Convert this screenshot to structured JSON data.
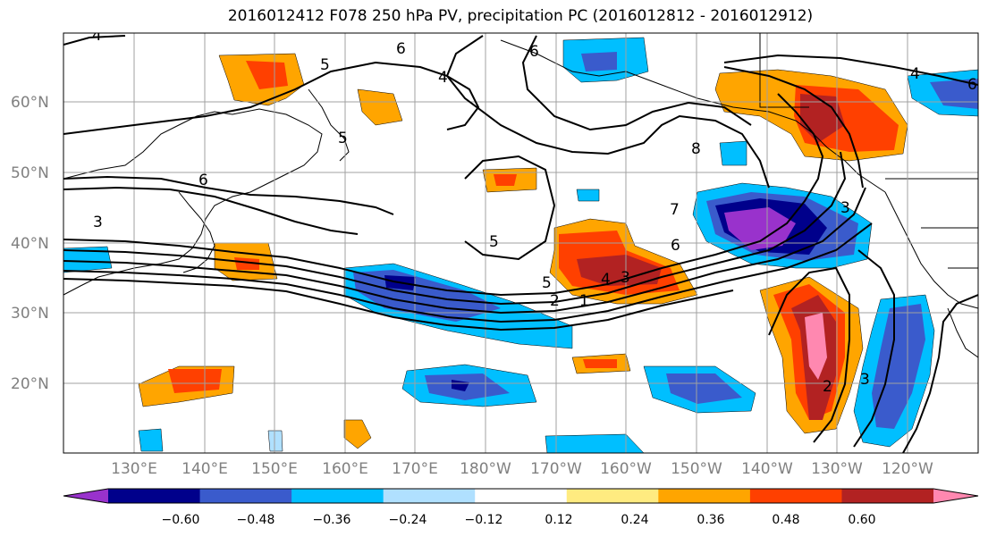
{
  "title": "2016012412 F078 250 hPa PV, precipitation PC (2016012812 - 2016012912)",
  "map": {
    "lat_labels": [
      "60°N",
      "50°N",
      "40°N",
      "30°N",
      "20°N"
    ],
    "lon_labels": [
      "130°E",
      "140°E",
      "150°E",
      "160°E",
      "170°E",
      "180°W",
      "170°W",
      "160°W",
      "150°W",
      "140°W",
      "130°W",
      "120°W"
    ]
  },
  "colorbar": {
    "colors": [
      "#9932CC",
      "#00008B",
      "#3A5BCC",
      "#00BFFF",
      "#B0E0FF",
      "#FFFFFF",
      "#FFEB80",
      "#FFA500",
      "#FF4000",
      "#B22222",
      "#FF88B0"
    ],
    "tick_labels": [
      "−0.60",
      "−0.48",
      "−0.36",
      "−0.24",
      "−0.12",
      "0.12",
      "0.24",
      "0.36",
      "0.48",
      "0.60"
    ]
  },
  "contour_labels": [
    "4",
    "5",
    "6",
    "6",
    "4",
    "5",
    "6",
    "3",
    "5",
    "8",
    "7",
    "6",
    "5",
    "4",
    "3",
    "2",
    "1",
    "6",
    "4",
    "3",
    "2",
    "3"
  ]
}
